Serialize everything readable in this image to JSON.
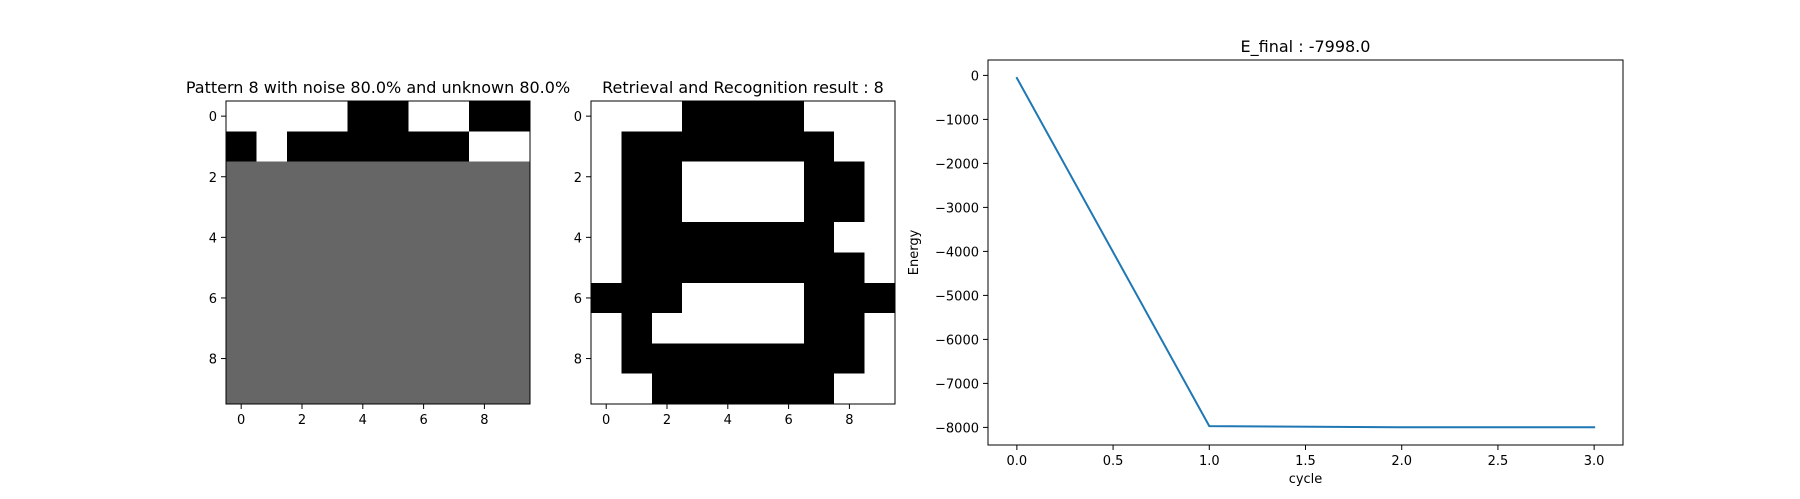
{
  "chart_data": [
    {
      "type": "heatmap",
      "title": "Pattern 8 with noise 80.0% and unknown 80.0%",
      "xlim": [
        -0.5,
        9.5
      ],
      "ylim": [
        9.5,
        -0.5
      ],
      "xticks": [
        0,
        2,
        4,
        6,
        8
      ],
      "yticks": [
        0,
        2,
        4,
        6,
        8
      ],
      "xtick_labels": [
        "0",
        "2",
        "4",
        "6",
        "8"
      ],
      "ytick_labels": [
        "0",
        "2",
        "4",
        "6",
        "8"
      ],
      "value_scale": {
        "-1": "#000000",
        "0": "#666666",
        "1": "#ffffff"
      },
      "grid": [
        [
          1,
          1,
          1,
          1,
          -1,
          -1,
          1,
          1,
          -1,
          -1
        ],
        [
          -1,
          1,
          -1,
          -1,
          -1,
          -1,
          -1,
          -1,
          1,
          1
        ],
        [
          0,
          0,
          0,
          0,
          0,
          0,
          0,
          0,
          0,
          0
        ],
        [
          0,
          0,
          0,
          0,
          0,
          0,
          0,
          0,
          0,
          0
        ],
        [
          0,
          0,
          0,
          0,
          0,
          0,
          0,
          0,
          0,
          0
        ],
        [
          0,
          0,
          0,
          0,
          0,
          0,
          0,
          0,
          0,
          0
        ],
        [
          0,
          0,
          0,
          0,
          0,
          0,
          0,
          0,
          0,
          0
        ],
        [
          0,
          0,
          0,
          0,
          0,
          0,
          0,
          0,
          0,
          0
        ],
        [
          0,
          0,
          0,
          0,
          0,
          0,
          0,
          0,
          0,
          0
        ],
        [
          0,
          0,
          0,
          0,
          0,
          0,
          0,
          0,
          0,
          0
        ]
      ]
    },
    {
      "type": "heatmap",
      "title": "Retrieval and Recognition result : 8",
      "xlim": [
        -0.5,
        9.5
      ],
      "ylim": [
        9.5,
        -0.5
      ],
      "xticks": [
        0,
        2,
        4,
        6,
        8
      ],
      "yticks": [
        0,
        2,
        4,
        6,
        8
      ],
      "xtick_labels": [
        "0",
        "2",
        "4",
        "6",
        "8"
      ],
      "ytick_labels": [
        "0",
        "2",
        "4",
        "6",
        "8"
      ],
      "value_scale": {
        "-1": "#000000",
        "0": "#666666",
        "1": "#ffffff"
      },
      "grid": [
        [
          1,
          1,
          1,
          -1,
          -1,
          -1,
          -1,
          1,
          1,
          1
        ],
        [
          1,
          -1,
          -1,
          -1,
          -1,
          -1,
          -1,
          -1,
          1,
          1
        ],
        [
          1,
          -1,
          -1,
          1,
          1,
          1,
          1,
          -1,
          -1,
          1
        ],
        [
          1,
          -1,
          -1,
          1,
          1,
          1,
          1,
          -1,
          -1,
          1
        ],
        [
          1,
          -1,
          -1,
          -1,
          -1,
          -1,
          -1,
          -1,
          1,
          1
        ],
        [
          1,
          -1,
          -1,
          -1,
          -1,
          -1,
          -1,
          -1,
          -1,
          1
        ],
        [
          -1,
          -1,
          -1,
          1,
          1,
          1,
          1,
          -1,
          -1,
          -1
        ],
        [
          1,
          -1,
          1,
          1,
          1,
          1,
          1,
          -1,
          -1,
          1
        ],
        [
          1,
          -1,
          -1,
          -1,
          -1,
          -1,
          -1,
          -1,
          -1,
          1
        ],
        [
          1,
          1,
          -1,
          -1,
          -1,
          -1,
          -1,
          -1,
          1,
          1
        ]
      ]
    },
    {
      "type": "line",
      "title": "E_final : -7998.0",
      "xlabel": "cycle",
      "ylabel": "Energy",
      "xlim": [
        -0.15,
        3.15
      ],
      "ylim": [
        -8400,
        350
      ],
      "xticks": [
        0.0,
        0.5,
        1.0,
        1.5,
        2.0,
        2.5,
        3.0
      ],
      "xtick_labels": [
        "0.0",
        "0.5",
        "1.0",
        "1.5",
        "2.0",
        "2.5",
        "3.0"
      ],
      "yticks": [
        0,
        -1000,
        -2000,
        -3000,
        -4000,
        -5000,
        -6000,
        -7000,
        -8000
      ],
      "ytick_labels": [
        "0",
        "−1000",
        "−2000",
        "−3000",
        "−4000",
        "−5000",
        "−6000",
        "−7000",
        "−8000"
      ],
      "grid": false,
      "series": [
        {
          "x": [
            0,
            1,
            2,
            3
          ],
          "y": [
            -60,
            -7970,
            -7998,
            -7998
          ],
          "color": "#1f77b4"
        }
      ]
    }
  ]
}
